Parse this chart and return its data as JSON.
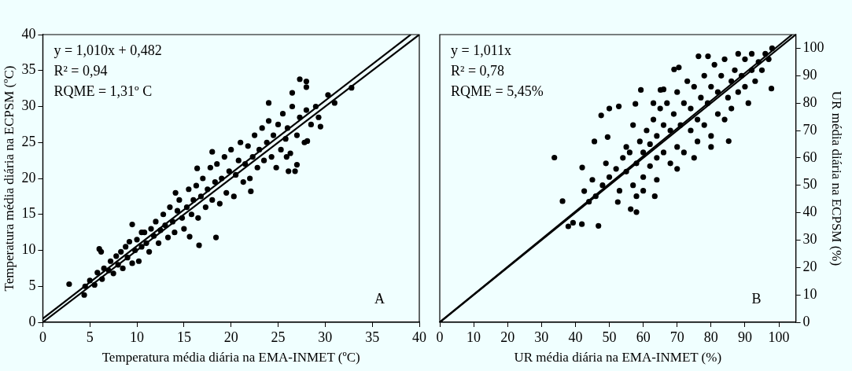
{
  "chart_data": [
    {
      "type": "scatter",
      "xlabel": "Temperatura média diária na EMA-INMET (ºC)",
      "ylabel": "Temperatura média diária na ECPSM (ºC)",
      "xlim": [
        0,
        40
      ],
      "xticks": [
        0,
        5,
        10,
        15,
        20,
        25,
        30,
        35,
        40
      ],
      "ylim": [
        0,
        40
      ],
      "yticks": [
        0,
        5,
        10,
        15,
        20,
        25,
        30,
        35,
        40
      ],
      "annotations": [
        "y = 1,010x + 0,482",
        "R² = 0,94",
        "RQME = 1,31º C",
        "A"
      ],
      "series": [
        {
          "type": "scatter",
          "marker": "circle",
          "color": "#000000",
          "x": [
            2.8,
            4.4,
            6,
            6.2,
            9.5,
            10.5,
            16.6,
            18.4,
            15.6,
            22.1,
            26.1,
            27,
            26.8,
            27.3,
            28,
            28,
            29.5,
            30.3,
            31,
            32.8,
            24,
            26.5,
            18,
            16.4,
            14.1,
            28.1,
            25.9,
            4.5,
            5,
            5.5,
            5.8,
            6.3,
            6.5,
            7,
            7.2,
            7.5,
            7.8,
            8,
            8.3,
            8.5,
            8.8,
            9,
            9.2,
            9.5,
            9.8,
            10,
            10.2,
            10.5,
            10.8,
            11,
            11.3,
            11.5,
            11.8,
            12,
            12.3,
            12.5,
            12.8,
            13,
            13.3,
            13.5,
            13.8,
            14,
            14.3,
            14.5,
            14.8,
            15,
            15.3,
            15.5,
            15.8,
            16,
            16.3,
            16.5,
            16.8,
            17,
            17.3,
            17.5,
            17.8,
            18,
            18.3,
            18.5,
            18.8,
            19,
            19.3,
            19.5,
            19.8,
            20,
            20.3,
            20.5,
            20.8,
            21,
            21.3,
            21.5,
            21.8,
            22,
            22.3,
            22.5,
            22.8,
            23,
            23.3,
            23.5,
            23.8,
            24,
            24.3,
            24.5,
            24.8,
            25,
            25.3,
            25.5,
            25.8,
            26,
            26.3,
            26.5,
            27,
            27.3,
            27.8,
            28,
            28.5,
            29,
            29.3
          ],
          "values": [
            5.3,
            3.8,
            10.2,
            9.8,
            13.6,
            12.5,
            10.7,
            11.8,
            11.9,
            18.2,
            21,
            21.9,
            21,
            33.8,
            33.5,
            32.7,
            27.2,
            31.6,
            30.5,
            32.6,
            30.5,
            31.9,
            23.7,
            21.4,
            18,
            25.2,
            23,
            5,
            5.8,
            5.2,
            6.9,
            6,
            7.5,
            7.2,
            8.5,
            6.8,
            9.2,
            8,
            9.8,
            7.5,
            10.5,
            9,
            11.2,
            8.2,
            10,
            11.5,
            8.5,
            10.5,
            12.5,
            11,
            9.8,
            13,
            12,
            14,
            11,
            12.8,
            15,
            13.5,
            11.8,
            16,
            14,
            12.5,
            15.5,
            17,
            14.5,
            13,
            16,
            18.5,
            15,
            17,
            19,
            14.5,
            17.5,
            20,
            16,
            18.5,
            21.5,
            17,
            19.5,
            22,
            16.5,
            20,
            23,
            18,
            21,
            24,
            17.5,
            20.5,
            22.5,
            25,
            19.5,
            22,
            24.5,
            20,
            23,
            26,
            21.5,
            24,
            27,
            22.5,
            25,
            28,
            23,
            26,
            21.5,
            27.5,
            24,
            29,
            25.5,
            27,
            23.5,
            30,
            26,
            28.5,
            25,
            29.5,
            27.5,
            30,
            28.5
          ]
        },
        {
          "type": "line",
          "marker": "none",
          "color": "#000000",
          "x": [
            0,
            39.1
          ],
          "values": [
            0.5,
            40
          ]
        },
        {
          "type": "line",
          "marker": "none",
          "color": "#000000",
          "x": [
            0,
            40
          ],
          "values": [
            0,
            40
          ]
        }
      ]
    },
    {
      "type": "scatter",
      "xlabel": "UR média diária na EMA-INMET (%)",
      "y2label": "UR média diária na ECPSM (%)",
      "xlim": [
        0,
        105
      ],
      "xticks": [
        0,
        10,
        20,
        30,
        40,
        50,
        60,
        70,
        80,
        90,
        100
      ],
      "y2lim": [
        0,
        105
      ],
      "y2ticks": [
        0,
        10,
        20,
        30,
        40,
        50,
        60,
        70,
        80,
        90,
        100
      ],
      "annotations": [
        "y = 1,011x",
        "R² = 0,78",
        "RQME = 5,45%",
        "B"
      ],
      "series": [
        {
          "type": "scatter",
          "marker": "circle",
          "color": "#000000",
          "axis": "y2",
          "x": [
            33.8,
            47.6,
            50,
            52.8,
            57.7,
            59.3,
            65.1,
            69.1,
            70.5,
            97.8,
            85.2,
            63.4,
            58,
            46.8,
            37.9,
            36.2,
            42.6,
            42,
            45.6,
            49.5,
            52.5,
            56.3,
            41.9,
            39.3,
            76.3,
            79.1,
            55,
            56,
            57,
            58,
            59,
            60,
            60,
            61,
            62,
            62,
            63,
            64,
            64,
            65,
            66,
            66,
            67,
            68,
            68,
            69,
            70,
            70,
            71,
            72,
            72,
            73,
            74,
            74,
            75,
            76,
            76,
            77,
            78,
            78,
            79,
            80,
            80,
            81,
            82,
            82,
            83,
            84,
            84,
            85,
            86,
            86,
            87,
            88,
            88,
            89,
            90,
            90,
            91,
            92,
            92,
            93,
            94,
            95,
            96,
            97,
            98,
            66,
            64,
            60,
            58,
            70,
            75,
            80,
            50,
            52,
            53,
            54,
            48,
            46,
            44,
            45,
            49,
            55,
            57,
            63
          ],
          "values": [
            60.1,
            75.5,
            78,
            78.8,
            79.7,
            84.8,
            84.8,
            92.3,
            93,
            85.3,
            66.1,
            46,
            40.2,
            35.2,
            35,
            44.2,
            47.9,
            56.5,
            66,
            67.6,
            43.9,
            41.3,
            35.8,
            36.3,
            97.1,
            97.1,
            55,
            62,
            50,
            58,
            66,
            53,
            62,
            70,
            57,
            65,
            74,
            60,
            68,
            78,
            62,
            72,
            80,
            58,
            70,
            76,
            64,
            84,
            72,
            80,
            62,
            88,
            70,
            78,
            86,
            66,
            74,
            82,
            90,
            72,
            80,
            86,
            68,
            94,
            76,
            84,
            90,
            74,
            96,
            82,
            88,
            78,
            92,
            84,
            98,
            90,
            86,
            96,
            80,
            92,
            98,
            88,
            95,
            92,
            98,
            96,
            100,
            85,
            52,
            48,
            46,
            56,
            60,
            64,
            53,
            56,
            48,
            60,
            50,
            46,
            44,
            52,
            58,
            64,
            72,
            80
          ]
        },
        {
          "type": "line",
          "marker": "none",
          "color": "#000000",
          "axis": "y2",
          "x": [
            0,
            103.9
          ],
          "values": [
            0,
            105
          ]
        },
        {
          "type": "line",
          "marker": "none",
          "color": "#000000",
          "axis": "y2",
          "x": [
            0,
            105
          ],
          "values": [
            0,
            105
          ]
        }
      ]
    }
  ]
}
